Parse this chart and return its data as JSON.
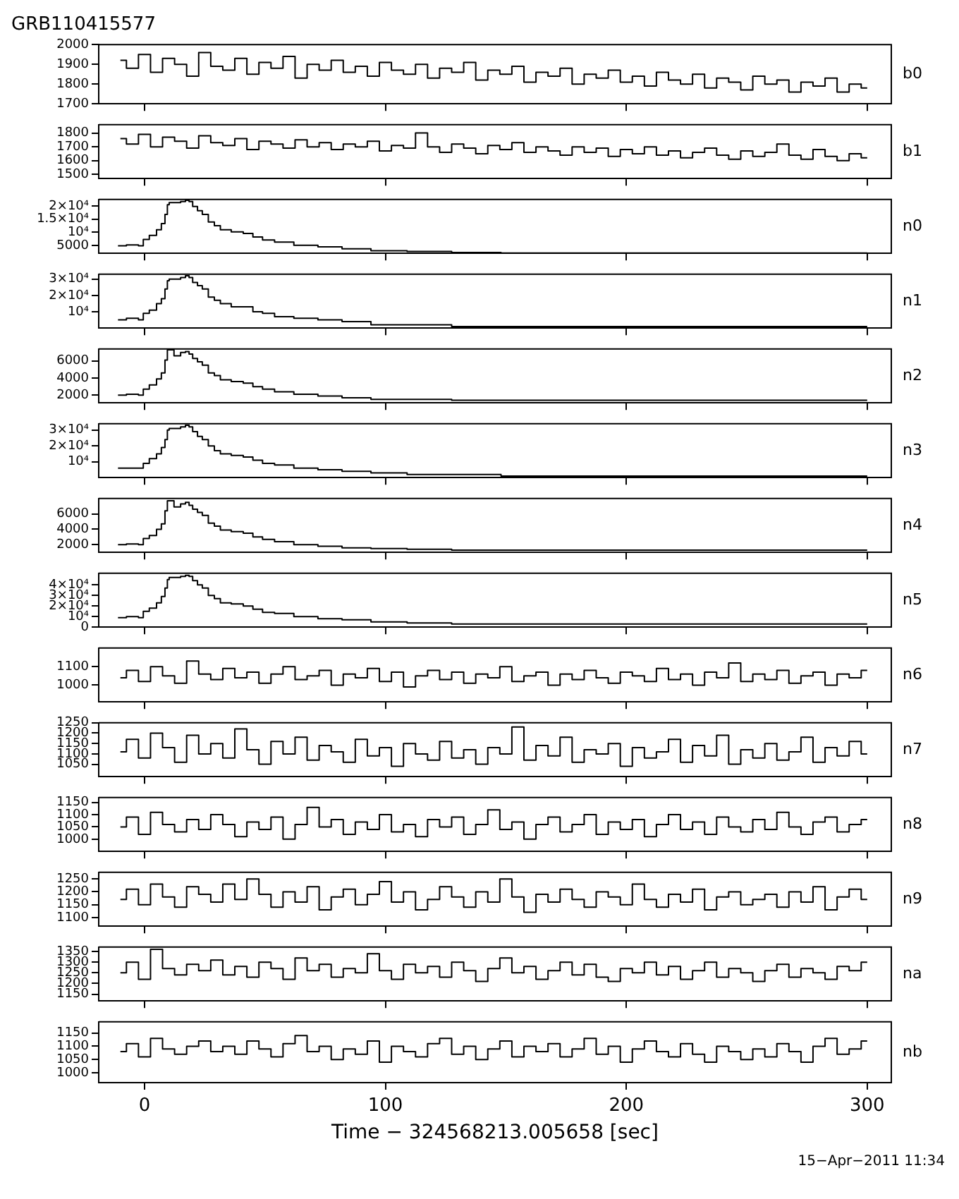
{
  "chart_data": [
    {
      "type": "step",
      "title": "GRB110415577",
      "x": [
        -10,
        -5,
        0,
        5,
        10,
        15,
        20,
        25,
        30,
        35,
        40,
        45,
        50,
        55,
        60,
        65,
        70,
        75,
        80,
        85,
        90,
        95,
        100,
        105,
        110,
        115,
        120,
        125,
        130,
        135,
        140,
        145,
        150,
        155,
        160,
        165,
        170,
        175,
        180,
        185,
        190,
        195,
        200,
        205,
        210,
        215,
        220,
        225,
        230,
        235,
        240,
        245,
        250,
        255,
        260,
        265,
        270,
        275,
        280,
        285,
        290,
        295,
        300
      ],
      "series": [
        {
          "name": "b0",
          "color": "#000000",
          "values": [
            1920,
            1880,
            1950,
            1860,
            1930,
            1900,
            1840,
            1960,
            1890,
            1870,
            1930,
            1850,
            1910,
            1880,
            1940,
            1830,
            1900,
            1870,
            1920,
            1860,
            1890,
            1840,
            1910,
            1870,
            1850,
            1900,
            1830,
            1880,
            1860,
            1910,
            1820,
            1870,
            1850,
            1890,
            1810,
            1860,
            1840,
            1880,
            1800,
            1850,
            1830,
            1870,
            1810,
            1840,
            1790,
            1860,
            1820,
            1800,
            1850,
            1780,
            1830,
            1810,
            1770,
            1840,
            1800,
            1820,
            1760,
            1810,
            1790,
            1830,
            1760,
            1800,
            1780
          ]
        }
      ],
      "xlim": [
        -19,
        310
      ],
      "xticks": [
        0,
        100,
        200,
        300
      ],
      "ylim": [
        1700,
        2000
      ],
      "yticks": [
        1700,
        1800,
        1900,
        2000
      ],
      "tick_labels": "y"
    },
    {
      "type": "step",
      "x": [
        -10,
        -5,
        0,
        5,
        10,
        15,
        20,
        25,
        30,
        35,
        40,
        45,
        50,
        55,
        60,
        65,
        70,
        75,
        80,
        85,
        90,
        95,
        100,
        105,
        110,
        115,
        120,
        125,
        130,
        135,
        140,
        145,
        150,
        155,
        160,
        165,
        170,
        175,
        180,
        185,
        190,
        195,
        200,
        205,
        210,
        215,
        220,
        225,
        230,
        235,
        240,
        245,
        250,
        255,
        260,
        265,
        270,
        275,
        280,
        285,
        290,
        295,
        300
      ],
      "series": [
        {
          "name": "b1",
          "color": "#000000",
          "values": [
            1760,
            1720,
            1790,
            1700,
            1770,
            1740,
            1690,
            1780,
            1730,
            1710,
            1760,
            1680,
            1740,
            1720,
            1690,
            1750,
            1700,
            1730,
            1680,
            1720,
            1700,
            1740,
            1670,
            1710,
            1690,
            1800,
            1700,
            1660,
            1720,
            1690,
            1650,
            1710,
            1680,
            1730,
            1660,
            1700,
            1670,
            1640,
            1700,
            1660,
            1690,
            1630,
            1680,
            1650,
            1700,
            1640,
            1670,
            1620,
            1660,
            1690,
            1640,
            1610,
            1670,
            1630,
            1660,
            1720,
            1640,
            1610,
            1680,
            1630,
            1600,
            1650,
            1620
          ]
        }
      ],
      "xlim": [
        -19,
        310
      ],
      "xticks": [
        0,
        100,
        200,
        300
      ],
      "ylim": [
        1470,
        1860
      ],
      "yticks": [
        1500,
        1600,
        1700,
        1800
      ],
      "tick_labels": "y"
    },
    {
      "type": "step",
      "x": [
        -11,
        -4,
        -1,
        0,
        4,
        6,
        8,
        9,
        10,
        10.5,
        14,
        16,
        18,
        19,
        21,
        23,
        25,
        28,
        30,
        33,
        39,
        43,
        47,
        51,
        57,
        67,
        77,
        87,
        101,
        117,
        138,
        158,
        200,
        250,
        300
      ],
      "series": [
        {
          "name": "n0",
          "color": "#000000",
          "values": [
            4900,
            5200,
            4900,
            7300,
            8800,
            11000,
            13300,
            16800,
            20500,
            21300,
            21300,
            21700,
            22200,
            21700,
            19800,
            18200,
            16800,
            13900,
            12500,
            11000,
            10200,
            9600,
            8200,
            7100,
            6300,
            5100,
            4500,
            3700,
            3000,
            2700,
            2300,
            2100,
            2100,
            2100,
            2100
          ]
        }
      ],
      "xlim": [
        -19,
        310
      ],
      "xticks": [
        0,
        100,
        200,
        300
      ],
      "ylim": [
        2000,
        22500
      ],
      "yticks": [
        5000,
        {
          "value": 10000,
          "label": "10⁴"
        },
        {
          "value": 15000,
          "label": "1.5×10⁴"
        },
        {
          "value": 20000,
          "label": "2×10⁴"
        }
      ],
      "tick_labels": "y"
    },
    {
      "type": "step",
      "x": [
        -11,
        -4,
        -1,
        0,
        4,
        6,
        8,
        9,
        10,
        10.5,
        14,
        16,
        18,
        19,
        21,
        23,
        25,
        28,
        30,
        33,
        39,
        43,
        47,
        51,
        57,
        67,
        77,
        87,
        101,
        117,
        138,
        158,
        200,
        250,
        300
      ],
      "series": [
        {
          "name": "n1",
          "color": "#000000",
          "values": [
            5000,
            6000,
            5000,
            9000,
            11000,
            15000,
            18000,
            24000,
            29000,
            30000,
            30000,
            31000,
            32000,
            31000,
            28000,
            26000,
            24000,
            19000,
            17000,
            15000,
            13000,
            13000,
            10000,
            9000,
            7000,
            6000,
            5000,
            4000,
            2000,
            2000,
            1000,
            1000,
            1000,
            1000,
            1000
          ]
        }
      ],
      "xlim": [
        -19,
        310
      ],
      "xticks": [
        0,
        100,
        200,
        300
      ],
      "ylim": [
        0,
        33000
      ],
      "yticks": [
        {
          "value": 10000,
          "label": "10⁴"
        },
        {
          "value": 20000,
          "label": "2×10⁴"
        },
        {
          "value": 30000,
          "label": "3×10⁴"
        }
      ],
      "tick_labels": "y"
    },
    {
      "type": "step",
      "x": [
        -11,
        -4,
        -1,
        0,
        4,
        6,
        8,
        9,
        10,
        10.5,
        14,
        16,
        18,
        19,
        21,
        23,
        25,
        28,
        30,
        33,
        39,
        43,
        47,
        51,
        57,
        67,
        77,
        87,
        101,
        117,
        138,
        158,
        200,
        250,
        300
      ],
      "series": [
        {
          "name": "n2",
          "color": "#000000",
          "values": [
            2000,
            2100,
            2000,
            2700,
            3200,
            3900,
            4600,
            6100,
            7300,
            7300,
            6600,
            7000,
            7100,
            6800,
            6300,
            5900,
            5500,
            4600,
            4300,
            3800,
            3600,
            3400,
            3000,
            2700,
            2400,
            2100,
            1900,
            1700,
            1500,
            1500,
            1400,
            1400,
            1400,
            1400,
            1400
          ]
        }
      ],
      "xlim": [
        -19,
        310
      ],
      "xticks": [
        0,
        100,
        200,
        300
      ],
      "ylim": [
        1100,
        7400
      ],
      "yticks": [
        2000,
        4000,
        6000
      ],
      "tick_labels": "y"
    },
    {
      "type": "step",
      "x": [
        -11,
        -4,
        -1,
        0,
        4,
        6,
        8,
        9,
        10,
        10.5,
        14,
        16,
        18,
        19,
        21,
        23,
        25,
        28,
        30,
        33,
        39,
        43,
        47,
        51,
        57,
        67,
        77,
        87,
        101,
        117,
        138,
        158,
        200,
        250,
        300
      ],
      "series": [
        {
          "name": "n3",
          "color": "#000000",
          "values": [
            6000,
            6000,
            6000,
            9000,
            12000,
            15000,
            19000,
            24000,
            30000,
            31000,
            31000,
            32000,
            33000,
            32000,
            29000,
            26000,
            24000,
            20000,
            17000,
            15000,
            14000,
            13000,
            11000,
            9000,
            8000,
            6000,
            5000,
            4000,
            3000,
            2000,
            2000,
            1000,
            1000,
            1000,
            1000
          ]
        }
      ],
      "xlim": [
        -19,
        310
      ],
      "xticks": [
        0,
        100,
        200,
        300
      ],
      "ylim": [
        0,
        34000
      ],
      "yticks": [
        {
          "value": 10000,
          "label": "10⁴"
        },
        {
          "value": 20000,
          "label": "2×10⁴"
        },
        {
          "value": 30000,
          "label": "3×10⁴"
        }
      ],
      "tick_labels": "y"
    },
    {
      "type": "step",
      "x": [
        -11,
        -4,
        -1,
        0,
        4,
        6,
        8,
        9,
        10,
        10.5,
        14,
        16,
        18,
        19,
        21,
        23,
        25,
        28,
        30,
        33,
        39,
        43,
        47,
        51,
        57,
        67,
        77,
        87,
        101,
        117,
        138,
        158,
        200,
        250,
        300
      ],
      "series": [
        {
          "name": "n4",
          "color": "#000000",
          "values": [
            2000,
            2100,
            2000,
            2800,
            3200,
            4000,
            4700,
            6400,
            7700,
            7700,
            6900,
            7300,
            7500,
            7100,
            6600,
            6200,
            5800,
            4800,
            4400,
            3900,
            3700,
            3500,
            3000,
            2700,
            2400,
            2000,
            1800,
            1600,
            1500,
            1400,
            1300,
            1300,
            1300,
            1300,
            1300
          ]
        }
      ],
      "xlim": [
        -19,
        310
      ],
      "xticks": [
        0,
        100,
        200,
        300
      ],
      "ylim": [
        1000,
        8000
      ],
      "yticks": [
        2000,
        4000,
        6000
      ],
      "tick_labels": "y"
    },
    {
      "type": "step",
      "x": [
        -11,
        -4,
        -1,
        0,
        4,
        6,
        8,
        9,
        10,
        10.5,
        14,
        16,
        18,
        19,
        21,
        23,
        25,
        28,
        30,
        33,
        39,
        43,
        47,
        51,
        57,
        67,
        77,
        87,
        101,
        117,
        138,
        158,
        200,
        250,
        300
      ],
      "series": [
        {
          "name": "n5",
          "color": "#000000",
          "values": [
            9000,
            10000,
            9000,
            15000,
            18000,
            23000,
            29000,
            37000,
            45000,
            47000,
            47000,
            48000,
            49000,
            48000,
            44000,
            40000,
            37000,
            30000,
            27000,
            23000,
            22000,
            20000,
            17000,
            14000,
            13000,
            10000,
            8000,
            7000,
            5000,
            4000,
            3000,
            3000,
            3000,
            3000,
            3000
          ]
        }
      ],
      "xlim": [
        -19,
        310
      ],
      "xticks": [
        0,
        100,
        200,
        300
      ],
      "ylim": [
        0,
        51000
      ],
      "yticks": [
        0,
        {
          "value": 10000,
          "label": "10⁴"
        },
        {
          "value": 20000,
          "label": "2×10⁴"
        },
        {
          "value": 30000,
          "label": "3×10⁴"
        },
        {
          "value": 40000,
          "label": "4×10⁴"
        }
      ],
      "tick_labels": "y"
    },
    {
      "type": "step",
      "x": [
        -10,
        -5,
        0,
        5,
        10,
        15,
        20,
        25,
        30,
        35,
        40,
        45,
        50,
        55,
        60,
        65,
        70,
        75,
        80,
        85,
        90,
        95,
        100,
        105,
        110,
        115,
        120,
        125,
        130,
        135,
        140,
        145,
        150,
        155,
        160,
        165,
        170,
        175,
        180,
        185,
        190,
        195,
        200,
        205,
        210,
        215,
        220,
        225,
        230,
        235,
        240,
        245,
        250,
        255,
        260,
        265,
        270,
        275,
        280,
        285,
        290,
        295,
        300
      ],
      "series": [
        {
          "name": "n6",
          "color": "#000000",
          "values": [
            1040,
            1080,
            1020,
            1100,
            1050,
            1010,
            1130,
            1060,
            1030,
            1090,
            1040,
            1070,
            1010,
            1060,
            1100,
            1030,
            1050,
            1080,
            1000,
            1060,
            1040,
            1090,
            1020,
            1070,
            990,
            1050,
            1080,
            1030,
            1070,
            1010,
            1060,
            1040,
            1100,
            1020,
            1050,
            1070,
            1000,
            1060,
            1030,
            1080,
            1040,
            1010,
            1070,
            1050,
            1020,
            1090,
            1030,
            1060,
            1000,
            1070,
            1040,
            1120,
            1020,
            1060,
            1030,
            1080,
            1010,
            1050,
            1070,
            1000,
            1060,
            1040,
            1080
          ]
        }
      ],
      "xlim": [
        -19,
        310
      ],
      "xticks": [
        0,
        100,
        200,
        300
      ],
      "ylim": [
        910,
        1200
      ],
      "yticks": [
        1000,
        1100
      ],
      "tick_labels": "y"
    },
    {
      "type": "step",
      "x": [
        -10,
        -5,
        0,
        5,
        10,
        15,
        20,
        25,
        30,
        35,
        40,
        45,
        50,
        55,
        60,
        65,
        70,
        75,
        80,
        85,
        90,
        95,
        100,
        105,
        110,
        115,
        120,
        125,
        130,
        135,
        140,
        145,
        150,
        155,
        160,
        165,
        170,
        175,
        180,
        185,
        190,
        195,
        200,
        205,
        210,
        215,
        220,
        225,
        230,
        235,
        240,
        245,
        250,
        255,
        260,
        265,
        270,
        275,
        280,
        285,
        290,
        295,
        300
      ],
      "series": [
        {
          "name": "n7",
          "color": "#000000",
          "values": [
            1110,
            1170,
            1080,
            1200,
            1130,
            1060,
            1190,
            1100,
            1150,
            1080,
            1220,
            1120,
            1050,
            1160,
            1100,
            1180,
            1070,
            1140,
            1110,
            1060,
            1170,
            1090,
            1130,
            1040,
            1150,
            1100,
            1070,
            1160,
            1080,
            1120,
            1050,
            1130,
            1100,
            1230,
            1070,
            1140,
            1090,
            1180,
            1060,
            1120,
            1100,
            1150,
            1040,
            1130,
            1080,
            1110,
            1170,
            1060,
            1140,
            1090,
            1190,
            1050,
            1120,
            1080,
            1150,
            1070,
            1110,
            1180,
            1060,
            1130,
            1090,
            1160,
            1100
          ]
        }
      ],
      "xlim": [
        -19,
        310
      ],
      "xticks": [
        0,
        100,
        200,
        300
      ],
      "ylim": [
        990,
        1250
      ],
      "yticks": [
        1050,
        1100,
        1150,
        1200,
        1250
      ],
      "tick_labels": "y"
    },
    {
      "type": "step",
      "x": [
        -10,
        -5,
        0,
        5,
        10,
        15,
        20,
        25,
        30,
        35,
        40,
        45,
        50,
        55,
        60,
        65,
        70,
        75,
        80,
        85,
        90,
        95,
        100,
        105,
        110,
        115,
        120,
        125,
        130,
        135,
        140,
        145,
        150,
        155,
        160,
        165,
        170,
        175,
        180,
        185,
        190,
        195,
        200,
        205,
        210,
        215,
        220,
        225,
        230,
        235,
        240,
        245,
        250,
        255,
        260,
        265,
        270,
        275,
        280,
        285,
        290,
        295,
        300
      ],
      "series": [
        {
          "name": "n8",
          "color": "#000000",
          "values": [
            1050,
            1090,
            1020,
            1110,
            1060,
            1030,
            1080,
            1040,
            1100,
            1060,
            1010,
            1070,
            1040,
            1090,
            1000,
            1060,
            1130,
            1050,
            1080,
            1020,
            1070,
            1040,
            1100,
            1030,
            1060,
            1010,
            1080,
            1050,
            1090,
            1020,
            1060,
            1120,
            1040,
            1070,
            1000,
            1060,
            1090,
            1030,
            1060,
            1100,
            1020,
            1070,
            1040,
            1080,
            1010,
            1060,
            1100,
            1040,
            1070,
            1020,
            1090,
            1050,
            1030,
            1080,
            1040,
            1110,
            1050,
            1020,
            1070,
            1090,
            1030,
            1060,
            1080
          ]
        }
      ],
      "xlim": [
        -19,
        310
      ],
      "xticks": [
        0,
        100,
        200,
        300
      ],
      "ylim": [
        950,
        1170
      ],
      "yticks": [
        1000,
        1050,
        1100,
        1150
      ],
      "tick_labels": "y"
    },
    {
      "type": "step",
      "x": [
        -10,
        -5,
        0,
        5,
        10,
        15,
        20,
        25,
        30,
        35,
        40,
        45,
        50,
        55,
        60,
        65,
        70,
        75,
        80,
        85,
        90,
        95,
        100,
        105,
        110,
        115,
        120,
        125,
        130,
        135,
        140,
        145,
        150,
        155,
        160,
        165,
        170,
        175,
        180,
        185,
        190,
        195,
        200,
        205,
        210,
        215,
        220,
        225,
        230,
        235,
        240,
        245,
        250,
        255,
        260,
        265,
        270,
        275,
        280,
        285,
        290,
        295,
        300
      ],
      "series": [
        {
          "name": "n9",
          "color": "#000000",
          "values": [
            1170,
            1210,
            1150,
            1230,
            1180,
            1140,
            1220,
            1190,
            1160,
            1230,
            1170,
            1250,
            1190,
            1140,
            1200,
            1160,
            1220,
            1130,
            1180,
            1210,
            1150,
            1190,
            1240,
            1160,
            1200,
            1130,
            1170,
            1220,
            1180,
            1140,
            1200,
            1160,
            1250,
            1180,
            1120,
            1190,
            1160,
            1210,
            1170,
            1140,
            1200,
            1180,
            1150,
            1230,
            1170,
            1140,
            1190,
            1160,
            1210,
            1130,
            1180,
            1200,
            1150,
            1170,
            1190,
            1140,
            1200,
            1160,
            1220,
            1130,
            1180,
            1210,
            1170
          ]
        }
      ],
      "xlim": [
        -19,
        310
      ],
      "xticks": [
        0,
        100,
        200,
        300
      ],
      "ylim": [
        1066,
        1276
      ],
      "yticks": [
        1100,
        1150,
        1200,
        1250
      ],
      "tick_labels": "y"
    },
    {
      "type": "step",
      "x": [
        -10,
        -5,
        0,
        5,
        10,
        15,
        20,
        25,
        30,
        35,
        40,
        45,
        50,
        55,
        60,
        65,
        70,
        75,
        80,
        85,
        90,
        95,
        100,
        105,
        110,
        115,
        120,
        125,
        130,
        135,
        140,
        145,
        150,
        155,
        160,
        165,
        170,
        175,
        180,
        185,
        190,
        195,
        200,
        205,
        210,
        215,
        220,
        225,
        230,
        235,
        240,
        245,
        250,
        255,
        260,
        265,
        270,
        275,
        280,
        285,
        290,
        295,
        300
      ],
      "series": [
        {
          "name": "na",
          "color": "#000000",
          "values": [
            1250,
            1300,
            1220,
            1360,
            1270,
            1240,
            1290,
            1260,
            1310,
            1240,
            1280,
            1230,
            1300,
            1270,
            1220,
            1320,
            1260,
            1290,
            1230,
            1270,
            1250,
            1340,
            1260,
            1220,
            1290,
            1250,
            1280,
            1230,
            1300,
            1260,
            1210,
            1270,
            1320,
            1250,
            1280,
            1220,
            1260,
            1300,
            1240,
            1290,
            1230,
            1210,
            1270,
            1250,
            1300,
            1240,
            1280,
            1220,
            1260,
            1300,
            1230,
            1270,
            1250,
            1210,
            1260,
            1290,
            1230,
            1270,
            1250,
            1220,
            1280,
            1260,
            1300
          ]
        }
      ],
      "xlim": [
        -19,
        310
      ],
      "xticks": [
        0,
        100,
        200,
        300
      ],
      "ylim": [
        1118,
        1371
      ],
      "yticks": [
        1150,
        1200,
        1250,
        1300,
        1350
      ],
      "tick_labels": "y"
    },
    {
      "type": "step",
      "xlabel": "Time − 324568213.005658 [sec]",
      "annotations": [
        "15−Apr−2011 11:34"
      ],
      "x": [
        -10,
        -5,
        0,
        5,
        10,
        15,
        20,
        25,
        30,
        35,
        40,
        45,
        50,
        55,
        60,
        65,
        70,
        75,
        80,
        85,
        90,
        95,
        100,
        105,
        110,
        115,
        120,
        125,
        130,
        135,
        140,
        145,
        150,
        155,
        160,
        165,
        170,
        175,
        180,
        185,
        190,
        195,
        200,
        205,
        210,
        215,
        220,
        225,
        230,
        235,
        240,
        245,
        250,
        255,
        260,
        265,
        270,
        275,
        280,
        285,
        290,
        295,
        300
      ],
      "series": [
        {
          "name": "nb",
          "color": "#000000",
          "values": [
            1080,
            1110,
            1060,
            1130,
            1090,
            1070,
            1100,
            1120,
            1080,
            1100,
            1070,
            1120,
            1090,
            1060,
            1110,
            1140,
            1080,
            1100,
            1050,
            1090,
            1070,
            1120,
            1040,
            1100,
            1080,
            1060,
            1110,
            1130,
            1070,
            1100,
            1050,
            1090,
            1120,
            1060,
            1100,
            1080,
            1110,
            1060,
            1090,
            1130,
            1070,
            1100,
            1040,
            1090,
            1120,
            1080,
            1060,
            1110,
            1070,
            1040,
            1100,
            1080,
            1050,
            1090,
            1060,
            1110,
            1080,
            1040,
            1100,
            1130,
            1070,
            1090,
            1120
          ]
        }
      ],
      "xlim": [
        -19,
        310
      ],
      "xticks": [
        0,
        100,
        200,
        300
      ],
      "ylim": [
        963,
        1192
      ],
      "yticks": [
        1000,
        1050,
        1100,
        1150
      ]
    }
  ]
}
